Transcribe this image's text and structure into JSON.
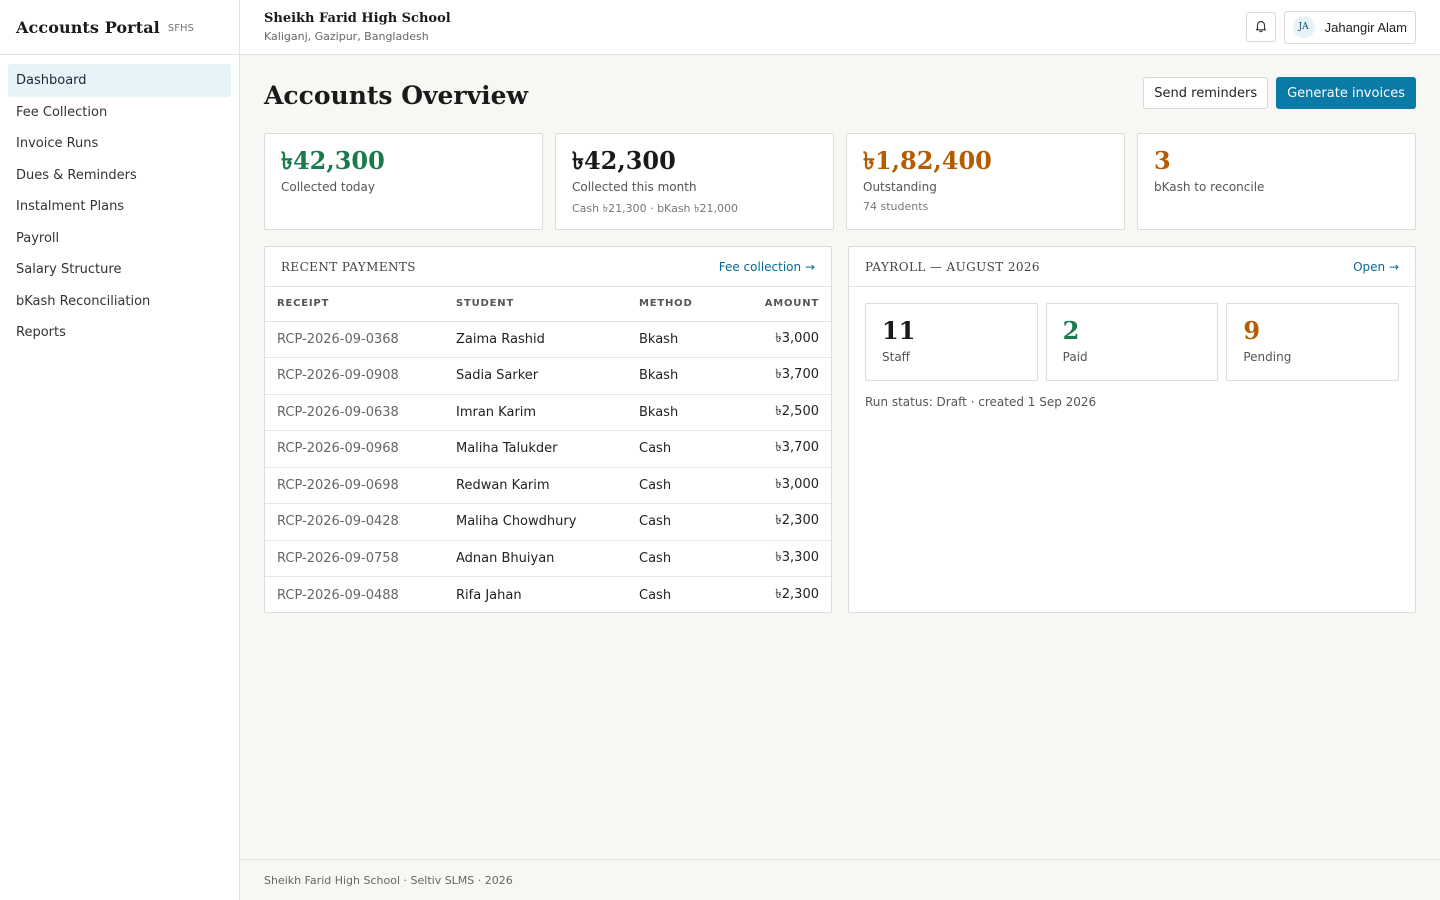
{
  "colors": {
    "accent": "#0a7aa6",
    "green": "#1a7a4c",
    "orange": "#b35c00",
    "dark": "#1a1a1a"
  },
  "sidebar": {
    "title": "Accounts Portal",
    "code": "SFHS",
    "items": [
      {
        "label": "Dashboard"
      },
      {
        "label": "Fee Collection"
      },
      {
        "label": "Invoice Runs"
      },
      {
        "label": "Dues & Reminders"
      },
      {
        "label": "Instalment Plans"
      },
      {
        "label": "Payroll"
      },
      {
        "label": "Salary Structure"
      },
      {
        "label": "bKash Reconciliation"
      },
      {
        "label": "Reports"
      }
    ]
  },
  "topbar": {
    "school_name": "Sheikh Farid High School",
    "location": "Kaliganj, Gazipur, Bangladesh",
    "bell_icon": "bell-icon",
    "user_initials": "JA",
    "user_name": "Jahangir Alam"
  },
  "page": {
    "title": "Accounts Overview",
    "send_reminders": "Send reminders",
    "generate_invoices": "Generate invoices"
  },
  "stats": [
    {
      "value": "৳42,300",
      "label": "Collected today",
      "sub": ""
    },
    {
      "value": "৳42,300",
      "label": "Collected this month",
      "sub": "Cash ৳21,300 · bKash ৳21,000"
    },
    {
      "value": "৳1,82,400",
      "label": "Outstanding",
      "sub": "74 students"
    },
    {
      "value": "3",
      "label": "bKash to reconcile",
      "sub": ""
    }
  ],
  "payments": {
    "title": "RECENT PAYMENTS",
    "link": "Fee collection →",
    "columns": [
      "RECEIPT",
      "STUDENT",
      "METHOD",
      "AMOUNT"
    ],
    "rows": [
      [
        "RCP-2026-09-0368",
        "Zaima Rashid",
        "Bkash",
        "৳3,000"
      ],
      [
        "RCP-2026-09-0908",
        "Sadia Sarker",
        "Bkash",
        "৳3,700"
      ],
      [
        "RCP-2026-09-0638",
        "Imran Karim",
        "Bkash",
        "৳2,500"
      ],
      [
        "RCP-2026-09-0968",
        "Maliha Talukder",
        "Cash",
        "৳3,700"
      ],
      [
        "RCP-2026-09-0698",
        "Redwan Karim",
        "Cash",
        "৳3,000"
      ],
      [
        "RCP-2026-09-0428",
        "Maliha Chowdhury",
        "Cash",
        "৳2,300"
      ],
      [
        "RCP-2026-09-0758",
        "Adnan Bhuiyan",
        "Cash",
        "৳3,300"
      ],
      [
        "RCP-2026-09-0488",
        "Rifa Jahan",
        "Cash",
        "৳2,300"
      ]
    ]
  },
  "payroll": {
    "title": "PAYROLL — AUGUST 2026",
    "link": "Open →",
    "stats": [
      {
        "value": "11",
        "label": "Staff"
      },
      {
        "value": "2",
        "label": "Paid"
      },
      {
        "value": "9",
        "label": "Pending"
      }
    ],
    "run_status": "Run status: Draft · created 1 Sep 2026"
  },
  "footer": {
    "text": "Sheikh Farid High School · Seltiv SLMS · 2026"
  }
}
